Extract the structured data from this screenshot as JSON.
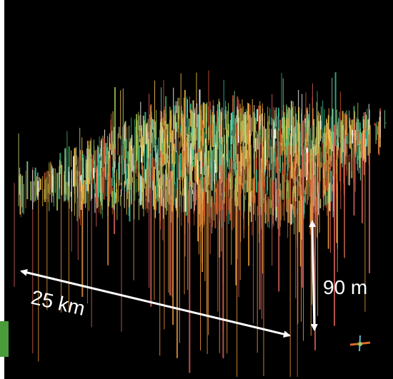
{
  "annotations": {
    "length": "25 km",
    "depth": "90 m"
  }
}
